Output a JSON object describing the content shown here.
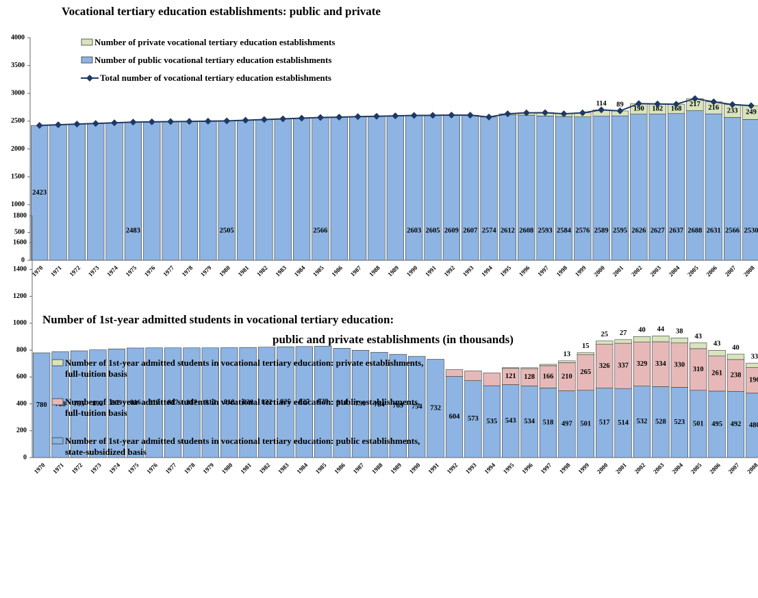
{
  "chart_data": [
    {
      "type": "bar",
      "stacked": true,
      "title": "Vocational tertiary education establishments: public and private",
      "categories": [
        "1970",
        "1971",
        "1972",
        "1973",
        "1974",
        "1975",
        "1976",
        "1977",
        "1978",
        "1979",
        "1980",
        "1981",
        "1982",
        "1983",
        "1984",
        "1985",
        "1986",
        "1987",
        "1988",
        "1989",
        "1990",
        "1991",
        "1992",
        "1993",
        "1994",
        "1995",
        "1996",
        "1997",
        "1998",
        "1999",
        "2000",
        "2001",
        "2002",
        "2003",
        "2004",
        "2005",
        "2006",
        "2007",
        "2008"
      ],
      "ylim": [
        0,
        4000
      ],
      "yticks": [
        0,
        500,
        1000,
        1500,
        2000,
        2500,
        3000,
        3500,
        4000
      ],
      "series": [
        {
          "name": "Number of private vocational tertiary education establishments",
          "color": "#d8e4bc",
          "values": [
            null,
            null,
            null,
            null,
            null,
            null,
            null,
            null,
            null,
            null,
            null,
            null,
            null,
            null,
            null,
            null,
            null,
            null,
            null,
            null,
            null,
            null,
            null,
            null,
            null,
            20,
            42,
            60,
            48,
            74,
            114,
            89,
            190,
            182,
            168,
            217,
            216,
            233,
            249
          ],
          "value_labels": [
            null,
            null,
            null,
            null,
            null,
            null,
            null,
            null,
            null,
            null,
            null,
            null,
            null,
            null,
            null,
            null,
            null,
            null,
            null,
            null,
            null,
            null,
            null,
            null,
            null,
            null,
            null,
            null,
            null,
            null,
            "114",
            "89",
            "190",
            "182",
            "168",
            "217",
            "216",
            "233",
            "249"
          ]
        },
        {
          "name": "Number of public vocational tertiary education establishments",
          "color": "#8db4e2",
          "values": [
            2423,
            2435,
            2447,
            2459,
            2471,
            2483,
            2487,
            2492,
            2496,
            2500,
            2505,
            2517,
            2529,
            2542,
            2554,
            2566,
            2573,
            2581,
            2588,
            2596,
            2603,
            2605,
            2609,
            2607,
            2574,
            2612,
            2608,
            2593,
            2584,
            2576,
            2589,
            2595,
            2626,
            2627,
            2637,
            2688,
            2631,
            2566,
            2530
          ],
          "value_labels": [
            "2423",
            null,
            null,
            null,
            null,
            "2483",
            null,
            null,
            null,
            null,
            "2505",
            null,
            null,
            null,
            null,
            "2566",
            null,
            null,
            null,
            null,
            "2603",
            "2605",
            "2609",
            "2607",
            "2574",
            "2612",
            "2608",
            "2593",
            "2584",
            "2576",
            "2589",
            "2595",
            "2626",
            "2627",
            "2637",
            "2688",
            "2631",
            "2566",
            "2530"
          ]
        },
        {
          "name": "Total number of vocational tertiary education establishments",
          "color": "#1f3864",
          "type": "line",
          "values": [
            2423,
            2435,
            2447,
            2459,
            2471,
            2483,
            2487,
            2492,
            2496,
            2500,
            2505,
            2517,
            2529,
            2542,
            2554,
            2566,
            2573,
            2581,
            2588,
            2596,
            2603,
            2605,
            2609,
            2607,
            2574,
            2632,
            2650,
            2653,
            2632,
            2650,
            2703,
            2684,
            2816,
            2809,
            2805,
            2905,
            2847,
            2799,
            2779
          ]
        }
      ]
    },
    {
      "type": "bar",
      "stacked": true,
      "title": "Number of 1st-year admitted students in vocational tertiary education:",
      "subtitle": "public and private  establishments (in thousands)",
      "categories": [
        "1970",
        "1971",
        "1972",
        "1973",
        "1974",
        "1975",
        "1976",
        "1977",
        "1978",
        "1979",
        "1980",
        "1981",
        "1982",
        "1983",
        "1984",
        "1985",
        "1986",
        "1987",
        "1988",
        "1989",
        "1990",
        "1991",
        "1992",
        "1993",
        "1994",
        "1995",
        "1996",
        "1997",
        "1998",
        "1999",
        "2000",
        "2001",
        "2002",
        "2003",
        "2004",
        "2005",
        "2006",
        "2007",
        "2008"
      ],
      "ylim": [
        0,
        1800
      ],
      "yticks": [
        0,
        200,
        400,
        600,
        800,
        1000,
        1200,
        1400,
        1600,
        1800
      ],
      "series": [
        {
          "name": "Number of 1st-year admitted students in vocational tertiary education: private establishments, full-tuition basis",
          "color": "#d8e4bc",
          "values": [
            null,
            null,
            null,
            null,
            null,
            null,
            null,
            null,
            null,
            null,
            null,
            null,
            null,
            null,
            null,
            null,
            null,
            null,
            null,
            null,
            null,
            null,
            null,
            null,
            null,
            5,
            7,
            10,
            13,
            15,
            25,
            27,
            40,
            44,
            38,
            43,
            43,
            40,
            33
          ],
          "value_labels": [
            null,
            null,
            null,
            null,
            null,
            null,
            null,
            null,
            null,
            null,
            null,
            null,
            null,
            null,
            null,
            null,
            null,
            null,
            null,
            null,
            null,
            null,
            null,
            null,
            null,
            null,
            null,
            null,
            "13",
            "15",
            "25",
            "27",
            "40",
            "44",
            "38",
            "43",
            "43",
            "40",
            "33"
          ]
        },
        {
          "name": "Number of 1st-year admitted students in vocational tertiary education: public establishments, full-tuition basis",
          "color": "#e6b9b8",
          "values": [
            null,
            null,
            null,
            null,
            null,
            null,
            null,
            null,
            null,
            null,
            null,
            null,
            null,
            null,
            null,
            null,
            null,
            null,
            null,
            null,
            null,
            null,
            51,
            72,
            95,
            121,
            128,
            166,
            210,
            265,
            326,
            337,
            329,
            334,
            330,
            310,
            261,
            238,
            190
          ],
          "value_labels": [
            null,
            null,
            null,
            null,
            null,
            null,
            null,
            null,
            null,
            null,
            null,
            null,
            null,
            null,
            null,
            null,
            null,
            null,
            null,
            null,
            null,
            null,
            null,
            null,
            null,
            "121",
            "128",
            "166",
            "210",
            "265",
            "326",
            "337",
            "329",
            "334",
            "330",
            "310",
            "261",
            "238",
            "190"
          ]
        },
        {
          "name": "Number of 1st-year admitted students in vocational tertiary education: public establishments, state-subsidized basis",
          "color": "#8db4e2",
          "values": [
            780,
            788,
            795,
            802,
            809,
            816,
            817,
            817,
            817,
            817,
            818,
            820,
            822,
            825,
            827,
            829,
            814,
            799,
            784,
            769,
            754,
            732,
            604,
            573,
            535,
            543,
            534,
            518,
            497,
            501,
            517,
            514,
            532,
            528,
            523,
            501,
            495,
            492,
            480
          ]
        }
      ]
    }
  ]
}
